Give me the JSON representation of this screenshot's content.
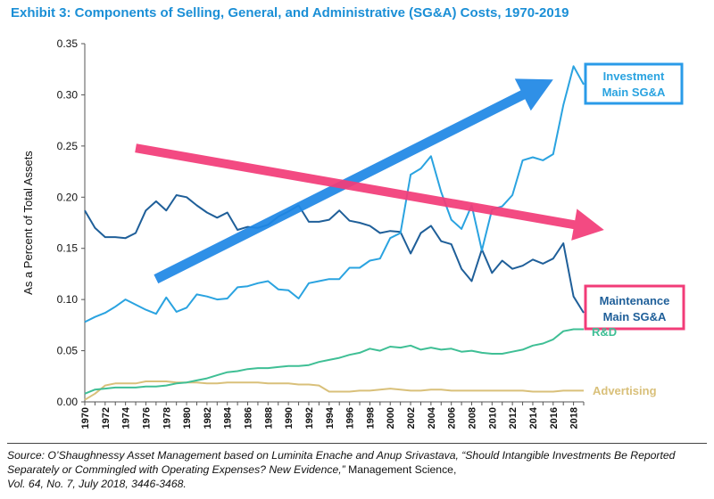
{
  "title": "Exhibit 3: Components of Selling, General, and Administrative (SG&A) Costs, 1970-2019",
  "source": {
    "italic": "Source: O’Shaughnessy Asset Management based on Luminita Enache and Anup Srivastava, “Should Intangible Investments Be Reported Separately or Commingled with Operating Expenses? New Evidence,”",
    "plain1": " Management Science,",
    "italic2": "Vol. 64, No. 7, July 2018, 3446-3468."
  },
  "colors": {
    "investment": "#2aa3e0",
    "maintenance": "#1f5f99",
    "rd": "#3fbf95",
    "advertising": "#d9c07a",
    "blue_arrow": "#1f88e5",
    "pink_arrow": "#f23c78",
    "title": "#1b8fd6",
    "investment_label_border": "#2a9be8",
    "maintenance_label_border": "#f23c78"
  },
  "chart_data": {
    "type": "line",
    "ylabel": "As a Percent of Total Assets",
    "xlabel": "",
    "ylim": [
      0,
      0.35
    ],
    "yticks": [
      "0.00",
      "0.05",
      "0.10",
      "0.15",
      "0.20",
      "0.25",
      "0.30",
      "0.35"
    ],
    "xticks": [
      "1970",
      "1972",
      "1974",
      "1976",
      "1978",
      "1980",
      "1982",
      "1984",
      "1986",
      "1988",
      "1990",
      "1992",
      "1994",
      "1996",
      "1998",
      "2000",
      "2002",
      "2004",
      "2006",
      "2008",
      "2010",
      "2012",
      "2014",
      "2016",
      "2018"
    ],
    "x": [
      1970,
      1971,
      1972,
      1973,
      1974,
      1975,
      1976,
      1977,
      1978,
      1979,
      1980,
      1981,
      1982,
      1983,
      1984,
      1985,
      1986,
      1987,
      1988,
      1989,
      1990,
      1991,
      1992,
      1993,
      1994,
      1995,
      1996,
      1997,
      1998,
      1999,
      2000,
      2001,
      2002,
      2003,
      2004,
      2005,
      2006,
      2007,
      2008,
      2009,
      2010,
      2011,
      2012,
      2013,
      2014,
      2015,
      2016,
      2017,
      2018,
      2019
    ],
    "grid": false,
    "series": [
      {
        "key": "investment",
        "name": "Investment Main SG&A",
        "values": [
          0.078,
          0.083,
          0.087,
          0.093,
          0.1,
          0.095,
          0.09,
          0.086,
          0.102,
          0.088,
          0.092,
          0.105,
          0.103,
          0.1,
          0.101,
          0.112,
          0.113,
          0.116,
          0.118,
          0.11,
          0.109,
          0.101,
          0.116,
          0.118,
          0.12,
          0.12,
          0.131,
          0.131,
          0.138,
          0.14,
          0.16,
          0.165,
          0.222,
          0.228,
          0.24,
          0.205,
          0.178,
          0.169,
          0.192,
          0.148,
          0.188,
          0.191,
          0.202,
          0.236,
          0.239,
          0.236,
          0.242,
          0.29,
          0.328,
          0.31
        ]
      },
      {
        "key": "maintenance",
        "name": "Maintenance Main SG&A",
        "values": [
          0.187,
          0.17,
          0.161,
          0.161,
          0.16,
          0.165,
          0.187,
          0.196,
          0.187,
          0.202,
          0.2,
          0.192,
          0.185,
          0.18,
          0.185,
          0.168,
          0.171,
          0.17,
          0.173,
          0.181,
          0.186,
          0.192,
          0.176,
          0.176,
          0.178,
          0.187,
          0.177,
          0.175,
          0.172,
          0.165,
          0.167,
          0.166,
          0.145,
          0.165,
          0.172,
          0.157,
          0.154,
          0.13,
          0.118,
          0.149,
          0.126,
          0.138,
          0.13,
          0.133,
          0.139,
          0.135,
          0.14,
          0.155,
          0.103,
          0.087
        ]
      },
      {
        "key": "rd",
        "name": "R&D",
        "values": [
          0.008,
          0.012,
          0.013,
          0.014,
          0.014,
          0.014,
          0.015,
          0.015,
          0.016,
          0.018,
          0.019,
          0.021,
          0.023,
          0.026,
          0.029,
          0.03,
          0.032,
          0.033,
          0.033,
          0.034,
          0.035,
          0.035,
          0.036,
          0.039,
          0.041,
          0.043,
          0.046,
          0.048,
          0.052,
          0.05,
          0.054,
          0.053,
          0.055,
          0.051,
          0.053,
          0.051,
          0.052,
          0.049,
          0.05,
          0.048,
          0.047,
          0.047,
          0.049,
          0.051,
          0.055,
          0.057,
          0.061,
          0.069,
          0.071,
          0.071
        ]
      },
      {
        "key": "advertising",
        "name": "Advertising",
        "values": [
          0.002,
          0.008,
          0.016,
          0.018,
          0.018,
          0.018,
          0.02,
          0.02,
          0.02,
          0.019,
          0.019,
          0.019,
          0.018,
          0.018,
          0.019,
          0.019,
          0.019,
          0.019,
          0.018,
          0.018,
          0.018,
          0.017,
          0.017,
          0.016,
          0.01,
          0.01,
          0.01,
          0.011,
          0.011,
          0.012,
          0.013,
          0.012,
          0.011,
          0.011,
          0.012,
          0.012,
          0.011,
          0.011,
          0.011,
          0.011,
          0.011,
          0.011,
          0.011,
          0.011,
          0.01,
          0.01,
          0.01,
          0.011,
          0.011,
          0.011
        ]
      }
    ],
    "labels": {
      "investment": [
        "Investment",
        "Main SG&A"
      ],
      "maintenance": [
        "Maintenance",
        "Main SG&A"
      ],
      "rd": "R&D",
      "advertising": "Advertising"
    },
    "annotations": [
      {
        "type": "arrow",
        "color": "blue",
        "from": [
          1977,
          0.12
        ],
        "to": [
          2016,
          0.315
        ]
      },
      {
        "type": "arrow",
        "color": "pink",
        "from": [
          1975,
          0.248
        ],
        "to": [
          2021,
          0.168
        ]
      }
    ]
  }
}
